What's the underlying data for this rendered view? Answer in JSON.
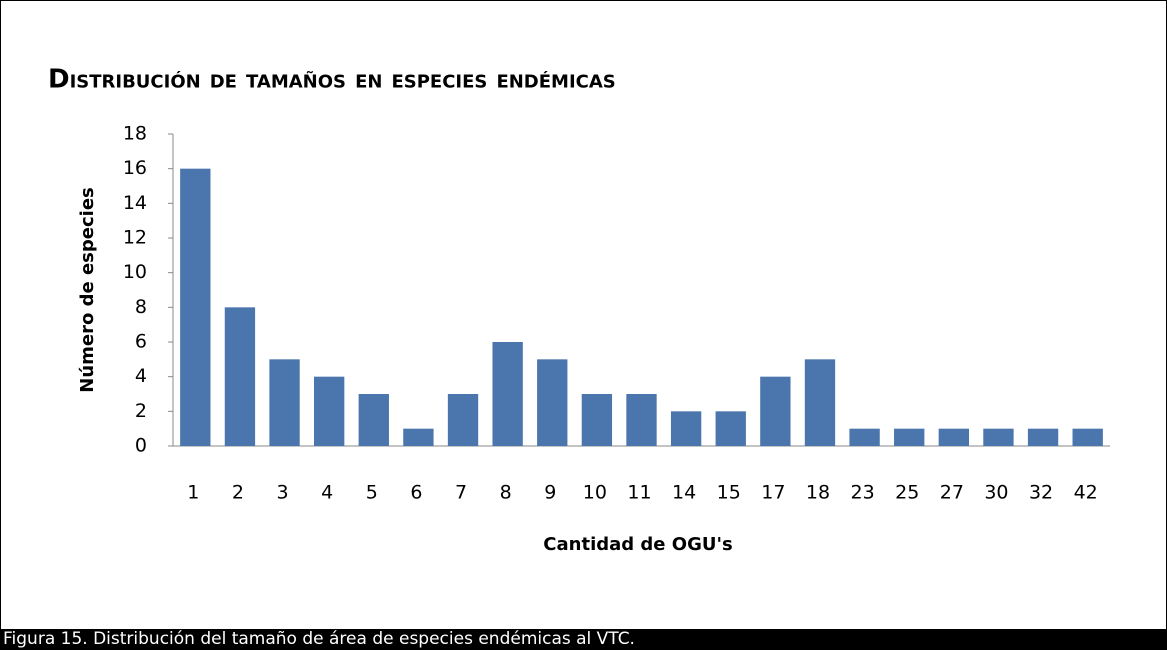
{
  "chart_data": {
    "type": "bar",
    "title": "Distribución de tamaños en especies endémicas",
    "x_label": "Cantidad de OGU's",
    "y_label": "Número de especies",
    "categories": [
      "1",
      "2",
      "3",
      "4",
      "5",
      "6",
      "7",
      "8",
      "9",
      "10",
      "11",
      "14",
      "15",
      "17",
      "18",
      "23",
      "25",
      "27",
      "30",
      "32",
      "42"
    ],
    "values": [
      16,
      8,
      5,
      4,
      3,
      1,
      3,
      6,
      5,
      3,
      3,
      2,
      2,
      4,
      5,
      1,
      1,
      1,
      1,
      1,
      1
    ],
    "color": "#4a76ad",
    "ylim": [
      0,
      18
    ],
    "yticks": [
      0,
      2,
      4,
      6,
      8,
      10,
      12,
      14,
      16,
      18
    ],
    "grid": false
  },
  "caption": "Figura 15. Distribución del tamaño de área de especies endémicas al VTC."
}
